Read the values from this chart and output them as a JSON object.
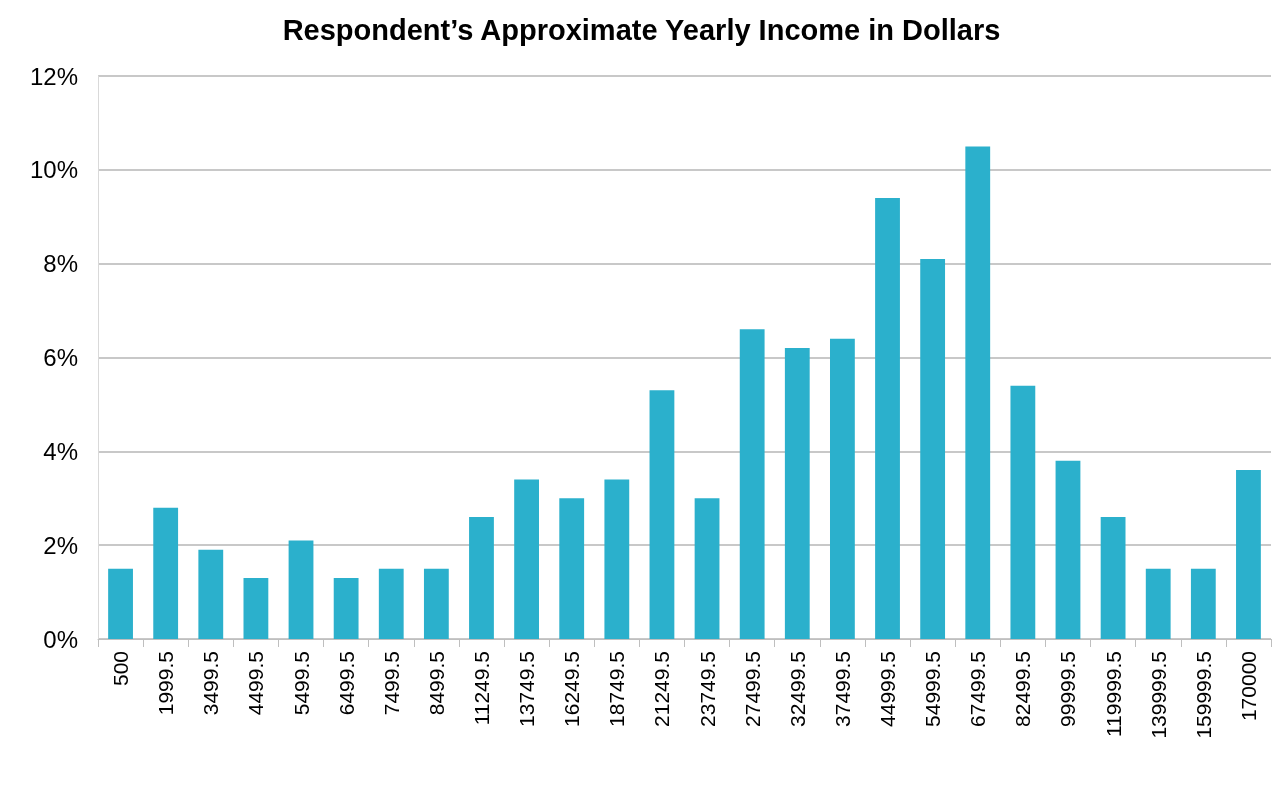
{
  "chart_data": {
    "type": "bar",
    "title": "Respondent’s Approximate Yearly Income in Dollars",
    "categories": [
      "500",
      "1999.5",
      "3499.5",
      "4499.5",
      "5499.5",
      "6499.5",
      "7499.5",
      "8499.5",
      "11249.5",
      "13749.5",
      "16249.5",
      "18749.5",
      "21249.5",
      "23749.5",
      "27499.5",
      "32499.5",
      "37499.5",
      "44999.5",
      "54999.5",
      "67499.5",
      "82499.5",
      "99999.5",
      "119999.5",
      "139999.5",
      "159999.5",
      "170000"
    ],
    "values": [
      1.5,
      2.8,
      1.9,
      1.3,
      2.1,
      1.3,
      1.5,
      1.5,
      2.6,
      3.4,
      3.0,
      3.4,
      5.3,
      3.0,
      6.6,
      6.2,
      6.4,
      9.4,
      8.1,
      10.5,
      5.4,
      3.8,
      2.6,
      1.5,
      1.5,
      3.6
    ],
    "color": "#2bb0cc",
    "ylim": [
      0,
      12
    ],
    "yticks": [
      {
        "value": 0,
        "label": "0%"
      },
      {
        "value": 2,
        "label": "2%"
      },
      {
        "value": 4,
        "label": "4%"
      },
      {
        "value": 6,
        "label": "6%"
      },
      {
        "value": 8,
        "label": "8%"
      },
      {
        "value": 10,
        "label": "10%"
      },
      {
        "value": 12,
        "label": "12%"
      }
    ],
    "grid": "y"
  }
}
